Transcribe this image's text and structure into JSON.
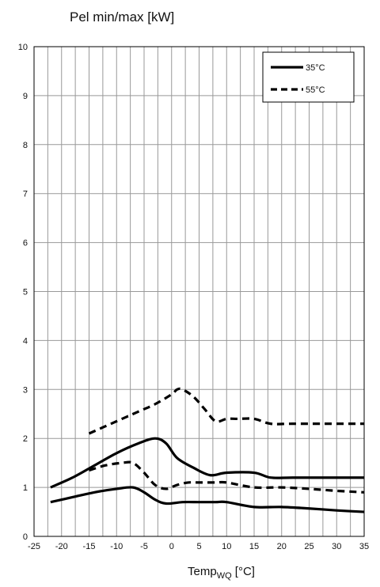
{
  "chart_data": {
    "type": "line",
    "title": "Pel min/max [kW]",
    "xlabel_main": "Temp",
    "xlabel_sub": "WQ",
    "xlabel_unit": " [°C]",
    "xlim": [
      -25,
      35
    ],
    "ylim": [
      0,
      10
    ],
    "xticks": [
      -25,
      -20,
      -15,
      -10,
      -5,
      0,
      5,
      10,
      15,
      20,
      25,
      30,
      35
    ],
    "yticks": [
      0,
      1,
      2,
      3,
      4,
      5,
      6,
      7,
      8,
      9,
      10
    ],
    "grid": true,
    "legend_position": "top-right",
    "series": [
      {
        "name": "35°C",
        "style": "solid",
        "curves": [
          {
            "x": [
              -22,
              -18,
              -14,
              -10,
              -6,
              -3,
              -1,
              1,
              4,
              7,
              10,
              15,
              18,
              22,
              30,
              35
            ],
            "y": [
              1.0,
              1.2,
              1.45,
              1.7,
              1.9,
              2.0,
              1.9,
              1.6,
              1.4,
              1.25,
              1.3,
              1.3,
              1.2,
              1.2,
              1.2,
              1.2
            ]
          },
          {
            "x": [
              -22,
              -18,
              -14,
              -10,
              -7,
              -5,
              -3,
              -1,
              2,
              5,
              8,
              10,
              15,
              20,
              25,
              30,
              35
            ],
            "y": [
              0.7,
              0.8,
              0.9,
              0.97,
              1.0,
              0.9,
              0.75,
              0.67,
              0.7,
              0.7,
              0.7,
              0.7,
              0.6,
              0.6,
              0.57,
              0.53,
              0.5
            ]
          }
        ]
      },
      {
        "name": "55°C",
        "style": "dashed",
        "curves": [
          {
            "x": [
              -15,
              -12,
              -9,
              -6,
              -3,
              0,
              1,
              2,
              4,
              6,
              8,
              10,
              12,
              15,
              18,
              22,
              30,
              35
            ],
            "y": [
              2.1,
              2.25,
              2.4,
              2.55,
              2.7,
              2.9,
              3.0,
              3.0,
              2.85,
              2.6,
              2.35,
              2.4,
              2.4,
              2.4,
              2.3,
              2.3,
              2.3,
              2.3
            ]
          },
          {
            "x": [
              -15,
              -12,
              -9,
              -7,
              -5,
              -3,
              -1,
              1,
              3,
              5,
              8,
              10,
              15,
              20,
              25,
              30,
              35
            ],
            "y": [
              1.35,
              1.45,
              1.5,
              1.5,
              1.3,
              1.05,
              0.97,
              1.05,
              1.1,
              1.1,
              1.1,
              1.1,
              1.0,
              1.0,
              0.97,
              0.93,
              0.9
            ]
          }
        ]
      }
    ]
  }
}
